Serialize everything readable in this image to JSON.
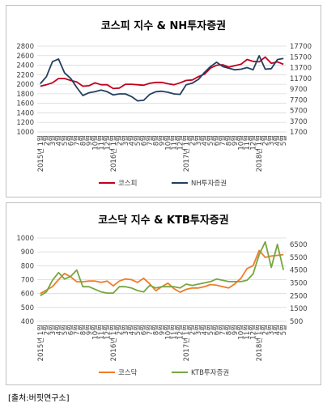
{
  "x_labels": [
    "2015년 1월",
    "2월",
    "3월",
    "4월",
    "5월",
    "6월",
    "7월",
    "8월",
    "9월",
    "10월",
    "11월",
    "12월",
    "2016년 1월",
    "2월",
    "3월",
    "4월",
    "5월",
    "6월",
    "7월",
    "8월",
    "9월",
    "10월",
    "11월",
    "12월",
    "2017년 1월",
    "2월",
    "3월",
    "4월",
    "5월",
    "6월",
    "7월",
    "8월",
    "9월",
    "10월",
    "11월",
    "12월",
    "2018년 1월",
    "2월",
    "3월",
    "4월",
    "5월"
  ],
  "source_text": "[출처:버핏연구소]",
  "chart_data": [
    {
      "type": "line",
      "title": "코스피 지수 & NH투자증권",
      "legend_position": "bottom",
      "grid": true,
      "y_left": {
        "min": 1000,
        "max": 2800,
        "ticks": [
          1000,
          1200,
          1400,
          1600,
          1800,
          2000,
          2200,
          2400,
          2600,
          2800
        ]
      },
      "y_right": {
        "min": 1700,
        "max": 17700,
        "ticks": [
          1700,
          3700,
          5700,
          7700,
          9700,
          11700,
          13700,
          15700,
          17700
        ]
      },
      "series": [
        {
          "name": "코스피",
          "axis": "left",
          "color": "#c0001e",
          "values": [
            1960,
            1990,
            2030,
            2120,
            2120,
            2080,
            2050,
            1960,
            1970,
            2030,
            1990,
            1990,
            1910,
            1920,
            2000,
            2000,
            1990,
            1980,
            2020,
            2040,
            2040,
            2010,
            1990,
            2030,
            2080,
            2090,
            2160,
            2210,
            2340,
            2400,
            2410,
            2360,
            2390,
            2420,
            2520,
            2480,
            2470,
            2570,
            2440,
            2470,
            2420
          ]
        },
        {
          "name": "NH투자증권",
          "axis": "right",
          "color": "#243f60",
          "values": [
            10700,
            12000,
            14800,
            15300,
            12700,
            11700,
            10000,
            8500,
            9000,
            9200,
            9500,
            9200,
            8600,
            8800,
            8800,
            8300,
            7500,
            7600,
            8700,
            9200,
            9300,
            9100,
            8800,
            8700,
            10500,
            10800,
            11500,
            12800,
            13900,
            14700,
            13900,
            13600,
            13300,
            13400,
            13700,
            13300,
            15900,
            13400,
            13500,
            15200,
            15400
          ]
        }
      ]
    },
    {
      "type": "line",
      "title": "코스닥 지수 & KTB투자증권",
      "legend_position": "bottom",
      "grid": true,
      "y_left": {
        "min": 400,
        "max": 1000,
        "ticks": [
          400,
          500,
          600,
          700,
          800,
          900,
          1000
        ]
      },
      "y_right": {
        "min": 500,
        "max": 7000,
        "ticks": [
          500,
          1500,
          2500,
          3500,
          4500,
          5500,
          6500
        ]
      },
      "series": [
        {
          "name": "코스닥",
          "axis": "left",
          "color": "#f07c2a",
          "values": [
            600,
            625,
            650,
            700,
            745,
            720,
            685,
            685,
            690,
            690,
            680,
            690,
            655,
            690,
            705,
            700,
            680,
            710,
            670,
            620,
            650,
            675,
            635,
            610,
            630,
            640,
            640,
            650,
            665,
            660,
            650,
            640,
            670,
            710,
            780,
            800,
            910,
            860,
            870,
            875,
            880
          ]
        },
        {
          "name": "KTB투자증권",
          "axis": "right",
          "color": "#77a640",
          "values": [
            2500,
            2800,
            3700,
            4300,
            3800,
            4000,
            4500,
            3200,
            3200,
            3000,
            2800,
            2700,
            2700,
            3200,
            3200,
            3100,
            2900,
            2800,
            3300,
            3100,
            3200,
            3200,
            3200,
            3100,
            3400,
            3300,
            3400,
            3500,
            3600,
            3800,
            3700,
            3600,
            3600,
            3600,
            3700,
            4200,
            5700,
            6700,
            4700,
            6500,
            4500
          ]
        }
      ]
    }
  ]
}
